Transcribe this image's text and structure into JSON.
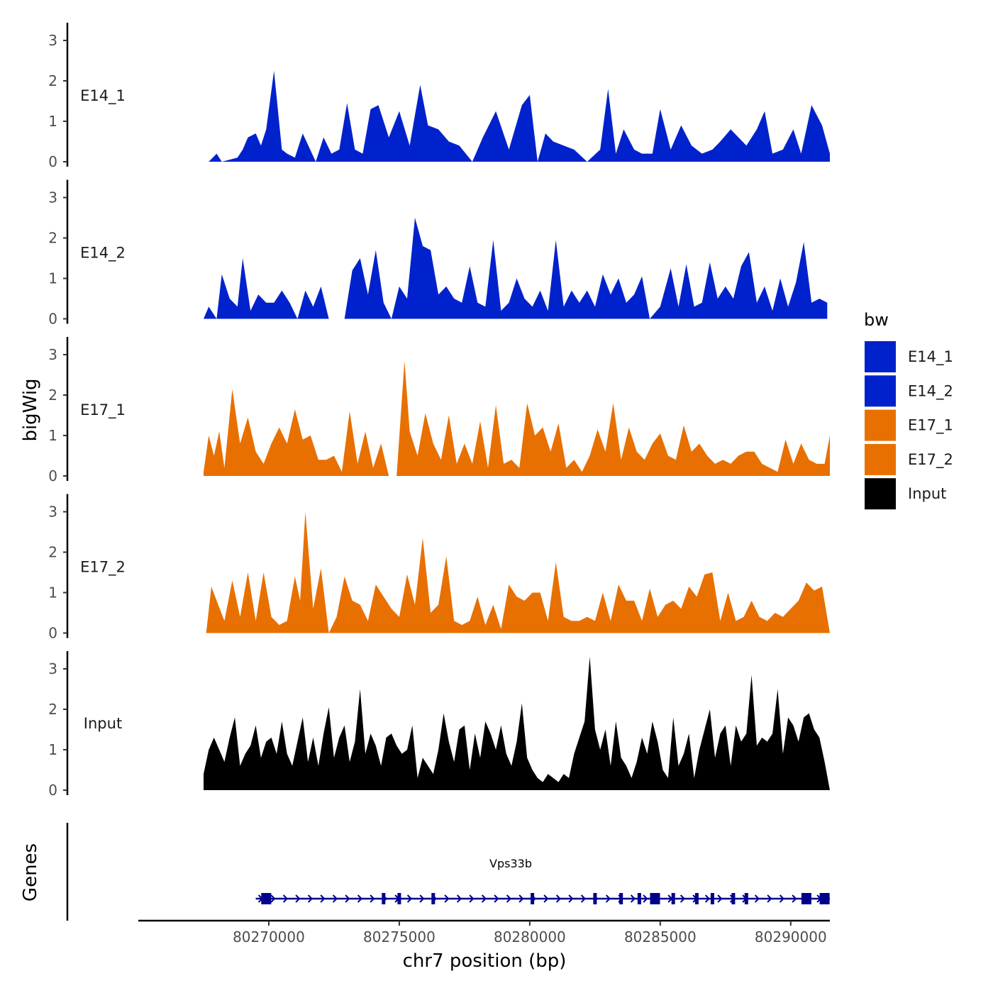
{
  "chart_data": {
    "type": "area",
    "title": "",
    "ylabel": "bigWig",
    "xlabel": "chr7 position (bp)",
    "gene_track_label": "Genes",
    "ylim": [
      0,
      3.3
    ],
    "y_ticks": [
      0,
      1,
      2,
      3
    ],
    "xlim": [
      80265000,
      80291500
    ],
    "x_ticks": [
      80270000,
      80275000,
      80280000,
      80285000,
      80290000
    ],
    "x_tick_labels": [
      "80270000",
      "80275000",
      "80280000",
      "80285000",
      "80290000"
    ],
    "legend": {
      "title": "bw",
      "position": "right",
      "entries": [
        {
          "label": "E14_1",
          "color": "#0022CC"
        },
        {
          "label": "E14_2",
          "color": "#0022CC"
        },
        {
          "label": "E17_1",
          "color": "#E87000"
        },
        {
          "label": "E17_2",
          "color": "#E87000"
        },
        {
          "label": "Input",
          "color": "#000000"
        }
      ]
    },
    "tracks": [
      {
        "name": "E14_1",
        "color": "#0022CC",
        "x": [
          80267700,
          80268000,
          80268200,
          80268800,
          80269000,
          80269200,
          80269500,
          80269700,
          80269900,
          80270200,
          80270500,
          80270700,
          80271000,
          80271300,
          80271800,
          80272100,
          80272400,
          80272700,
          80273000,
          80273300,
          80273600,
          80273900,
          80274200,
          80274600,
          80275000,
          80275400,
          80275800,
          80276100,
          80276500,
          80276900,
          80277300,
          80277800,
          80278200,
          80278700,
          80279200,
          80279700,
          80280000,
          80280300,
          80280600,
          80280900,
          80281300,
          80281700,
          80282200,
          80282700,
          80283000,
          80283300,
          80283600,
          80284000,
          80284300,
          80284700,
          80285000,
          80285400,
          80285800,
          80286200,
          80286600,
          80287000,
          80287300,
          80287700,
          80288000,
          80288300,
          80288700,
          80289000,
          80289300,
          80289700,
          80290100,
          80290400,
          80290800,
          80291200,
          80291500
        ],
        "values": [
          0,
          0.2,
          0,
          0.1,
          0.3,
          0.6,
          0.7,
          0.4,
          0.8,
          2.25,
          0.3,
          0.2,
          0.1,
          0.7,
          0,
          0.6,
          0.2,
          0.3,
          1.45,
          0.3,
          0.2,
          1.3,
          1.4,
          0.6,
          1.25,
          0.4,
          1.9,
          0.9,
          0.8,
          0.5,
          0.4,
          0,
          0.6,
          1.25,
          0.3,
          1.4,
          1.65,
          0,
          0.7,
          0.5,
          0.4,
          0.3,
          0,
          0.3,
          1.8,
          0.2,
          0.8,
          0.3,
          0.2,
          0.2,
          1.3,
          0.3,
          0.9,
          0.4,
          0.2,
          0.3,
          0.5,
          0.8,
          0.6,
          0.4,
          0.8,
          1.25,
          0.2,
          0.3,
          0.8,
          0.2,
          1.4,
          0.9,
          0.2
        ]
      },
      {
        "name": "E14_2",
        "color": "#0022CC",
        "x": [
          80267500,
          80267700,
          80268000,
          80268200,
          80268500,
          80268800,
          80269000,
          80269300,
          80269600,
          80269900,
          80270200,
          80270500,
          80270800,
          80271100,
          80271400,
          80271700,
          80272000,
          80272300,
          80272600,
          80272900,
          80273200,
          80273500,
          80273800,
          80274100,
          80274400,
          80274700,
          80275000,
          80275300,
          80275600,
          80275900,
          80276200,
          80276500,
          80276800,
          80277100,
          80277400,
          80277700,
          80278000,
          80278300,
          80278600,
          80278900,
          80279200,
          80279500,
          80279800,
          80280100,
          80280400,
          80280700,
          80281000,
          80281300,
          80281600,
          80281900,
          80282200,
          80282500,
          80282800,
          80283100,
          80283400,
          80283700,
          80284000,
          80284300,
          80284600,
          80285000,
          80285400,
          80285700,
          80286000,
          80286300,
          80286600,
          80286900,
          80287200,
          80287500,
          80287800,
          80288100,
          80288400,
          80288700,
          80289000,
          80289300,
          80289600,
          80289900,
          80290200,
          80290500,
          80290800,
          80291100,
          80291400
        ],
        "values": [
          0,
          0.3,
          0,
          1.1,
          0.5,
          0.3,
          1.5,
          0.2,
          0.6,
          0.4,
          0.4,
          0.7,
          0.4,
          0,
          0.7,
          0.3,
          0.8,
          0,
          0,
          0,
          1.2,
          1.5,
          0.6,
          1.7,
          0.4,
          0,
          0.8,
          0.5,
          2.5,
          1.8,
          1.7,
          0.6,
          0.8,
          0.5,
          0.4,
          1.3,
          0.4,
          0.3,
          1.95,
          0.2,
          0.4,
          1.0,
          0.5,
          0.3,
          0.7,
          0.2,
          1.95,
          0.3,
          0.7,
          0.4,
          0.7,
          0.3,
          1.1,
          0.6,
          1.0,
          0.4,
          0.6,
          1.05,
          0,
          0.3,
          1.25,
          0.3,
          1.35,
          0.3,
          0.4,
          1.4,
          0.5,
          0.8,
          0.5,
          1.3,
          1.65,
          0.4,
          0.8,
          0.2,
          1.0,
          0.3,
          0.9,
          1.9,
          0.4,
          0.5,
          0.4
        ]
      },
      {
        "name": "E17_1",
        "color": "#E87000",
        "x": [
          80267500,
          80267700,
          80267900,
          80268100,
          80268300,
          80268600,
          80268900,
          80269200,
          80269500,
          80269800,
          80270100,
          80270400,
          80270700,
          80271000,
          80271300,
          80271600,
          80271900,
          80272200,
          80272500,
          80272800,
          80273100,
          80273400,
          80273700,
          80274000,
          80274300,
          80274600,
          80274900,
          80275200,
          80275400,
          80275700,
          80276000,
          80276300,
          80276600,
          80276900,
          80277200,
          80277500,
          80277800,
          80278100,
          80278400,
          80278700,
          80279000,
          80279300,
          80279600,
          80279900,
          80280200,
          80280500,
          80280800,
          80281100,
          80281400,
          80281700,
          80282000,
          80282300,
          80282600,
          80282900,
          80283200,
          80283500,
          80283800,
          80284100,
          80284400,
          80284700,
          80285000,
          80285300,
          80285600,
          80285900,
          80286200,
          80286500,
          80286800,
          80287100,
          80287400,
          80287700,
          80288000,
          80288300,
          80288600,
          80288900,
          80289200,
          80289500,
          80289800,
          80290100,
          80290400,
          80290700,
          80291000,
          80291300,
          80291500
        ],
        "values": [
          0.1,
          1.0,
          0.5,
          1.1,
          0.2,
          2.15,
          0.8,
          1.45,
          0.6,
          0.3,
          0.8,
          1.2,
          0.8,
          1.65,
          0.9,
          1.0,
          0.4,
          0.4,
          0.5,
          0.1,
          1.6,
          0.3,
          1.1,
          0.2,
          0.8,
          0,
          0,
          2.85,
          1.1,
          0.5,
          1.55,
          0.8,
          0.4,
          1.5,
          0.3,
          0.8,
          0.3,
          1.35,
          0.2,
          1.75,
          0.3,
          0.4,
          0.2,
          1.8,
          1.0,
          1.2,
          0.6,
          1.3,
          0.2,
          0.4,
          0.1,
          0.5,
          1.15,
          0.6,
          1.8,
          0.4,
          1.2,
          0.6,
          0.4,
          0.8,
          1.05,
          0.5,
          0.4,
          1.25,
          0.6,
          0.8,
          0.5,
          0.3,
          0.4,
          0.3,
          0.5,
          0.6,
          0.6,
          0.3,
          0.2,
          0.1,
          0.9,
          0.3,
          0.8,
          0.4,
          0.3,
          0.3,
          1.0
        ]
      },
      {
        "name": "E17_2",
        "color": "#E87000",
        "x": [
          80267600,
          80267800,
          80268000,
          80268300,
          80268600,
          80268900,
          80269200,
          80269500,
          80269800,
          80270100,
          80270400,
          80270700,
          80271000,
          80271200,
          80271400,
          80271700,
          80272000,
          80272300,
          80272600,
          80272900,
          80273200,
          80273500,
          80273800,
          80274100,
          80274400,
          80274700,
          80275000,
          80275300,
          80275600,
          80275900,
          80276200,
          80276500,
          80276800,
          80277100,
          80277400,
          80277700,
          80278000,
          80278300,
          80278600,
          80278900,
          80279200,
          80279500,
          80279800,
          80280100,
          80280400,
          80280700,
          80281000,
          80281300,
          80281600,
          80281900,
          80282200,
          80282500,
          80282800,
          80283100,
          80283400,
          80283700,
          80284000,
          80284300,
          80284600,
          80284900,
          80285200,
          80285500,
          80285800,
          80286100,
          80286400,
          80286700,
          80287000,
          80287300,
          80287600,
          80287900,
          80288200,
          80288500,
          80288800,
          80289100,
          80289400,
          80289700,
          80290000,
          80290300,
          80290600,
          80290900,
          80291200,
          80291500
        ],
        "values": [
          0,
          1.15,
          0.8,
          0.3,
          1.3,
          0.4,
          1.5,
          0.3,
          1.5,
          0.4,
          0.2,
          0.3,
          1.4,
          0.8,
          3.0,
          0.6,
          1.6,
          0,
          0.4,
          1.4,
          0.8,
          0.7,
          0.3,
          1.2,
          0.9,
          0.6,
          0.4,
          1.45,
          0.7,
          2.35,
          0.5,
          0.7,
          1.9,
          0.3,
          0.2,
          0.3,
          0.9,
          0.2,
          0.7,
          0.1,
          1.2,
          0.9,
          0.8,
          1.0,
          1.0,
          0.3,
          1.75,
          0.4,
          0.3,
          0.3,
          0.4,
          0.3,
          1.0,
          0.3,
          1.2,
          0.8,
          0.8,
          0.3,
          1.1,
          0.4,
          0.7,
          0.8,
          0.6,
          1.15,
          0.9,
          1.45,
          1.5,
          0.3,
          1.0,
          0.3,
          0.4,
          0.8,
          0.4,
          0.3,
          0.5,
          0.4,
          0.6,
          0.8,
          1.25,
          1.05,
          1.15,
          0
        ]
      },
      {
        "name": "Input",
        "color": "#000000",
        "x": [
          80267500,
          80267700,
          80267900,
          80268100,
          80268300,
          80268500,
          80268700,
          80268900,
          80269100,
          80269300,
          80269500,
          80269700,
          80269900,
          80270100,
          80270300,
          80270500,
          80270700,
          80270900,
          80271100,
          80271300,
          80271500,
          80271700,
          80271900,
          80272100,
          80272300,
          80272500,
          80272700,
          80272900,
          80273100,
          80273300,
          80273500,
          80273700,
          80273900,
          80274100,
          80274300,
          80274500,
          80274700,
          80274900,
          80275100,
          80275300,
          80275500,
          80275700,
          80275900,
          80276100,
          80276300,
          80276500,
          80276700,
          80276900,
          80277100,
          80277300,
          80277500,
          80277700,
          80277900,
          80278100,
          80278300,
          80278500,
          80278700,
          80278900,
          80279100,
          80279300,
          80279500,
          80279700,
          80279900,
          80280100,
          80280300,
          80280500,
          80280700,
          80280900,
          80281100,
          80281300,
          80281500,
          80281700,
          80281900,
          80282100,
          80282300,
          80282500,
          80282700,
          80282900,
          80283100,
          80283300,
          80283500,
          80283700,
          80283900,
          80284100,
          80284300,
          80284500,
          80284700,
          80284900,
          80285100,
          80285300,
          80285500,
          80285700,
          80285900,
          80286100,
          80286300,
          80286500,
          80286700,
          80286900,
          80287100,
          80287300,
          80287500,
          80287700,
          80287900,
          80288100,
          80288300,
          80288500,
          80288700,
          80288900,
          80289100,
          80289300,
          80289500,
          80289700,
          80289900,
          80290100,
          80290300,
          80290500,
          80290700,
          80290900,
          80291100,
          80291300,
          80291500
        ],
        "values": [
          0.4,
          1.0,
          1.3,
          1.0,
          0.7,
          1.3,
          1.8,
          0.6,
          0.9,
          1.1,
          1.6,
          0.8,
          1.2,
          1.3,
          0.9,
          1.7,
          0.9,
          0.6,
          1.2,
          1.8,
          0.7,
          1.3,
          0.6,
          1.4,
          2.05,
          0.8,
          1.3,
          1.6,
          0.7,
          1.2,
          2.5,
          0.9,
          1.4,
          1.1,
          0.6,
          1.3,
          1.4,
          1.1,
          0.9,
          1.0,
          1.6,
          0.3,
          0.8,
          0.6,
          0.4,
          1.0,
          1.9,
          1.2,
          0.7,
          1.5,
          1.6,
          0.5,
          1.4,
          0.8,
          1.7,
          1.4,
          1.0,
          1.6,
          0.9,
          0.6,
          1.2,
          2.15,
          0.8,
          0.5,
          0.3,
          0.2,
          0.4,
          0.3,
          0.2,
          0.4,
          0.3,
          0.9,
          1.3,
          1.7,
          3.3,
          1.5,
          1.0,
          1.5,
          0.6,
          1.7,
          0.8,
          0.6,
          0.3,
          0.7,
          1.3,
          0.9,
          1.7,
          1.2,
          0.5,
          0.3,
          1.8,
          0.6,
          0.9,
          1.4,
          0.3,
          1.0,
          1.5,
          2.0,
          0.8,
          1.4,
          1.6,
          0.6,
          1.6,
          1.2,
          1.4,
          2.85,
          1.1,
          1.3,
          1.2,
          1.4,
          2.5,
          0.9,
          1.8,
          1.6,
          1.2,
          1.8,
          1.9,
          1.5,
          1.3,
          0.7,
          0
        ]
      }
    ],
    "gene": {
      "name": "Vps33b",
      "start": 80269500,
      "end": 80291500,
      "strand": "+",
      "color": "#00008B",
      "exons": [
        80269900,
        80274400,
        80275000,
        80276300,
        80280100,
        80282500,
        80283500,
        80284200,
        80284800,
        80285500,
        80286400,
        80287000,
        80287800,
        80288300,
        80290600,
        80291300
      ]
    }
  }
}
